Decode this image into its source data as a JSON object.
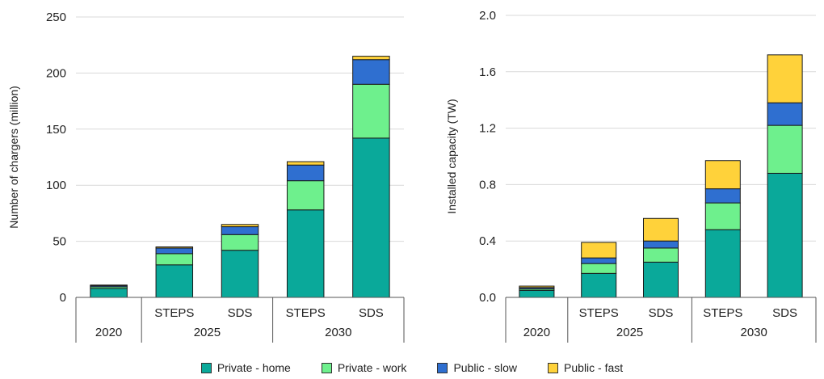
{
  "colors": {
    "Private - home": "#0aa99a",
    "Private - work": "#6ef08d",
    "Public - slow": "#2f6fd0",
    "Public - fast": "#ffd23a"
  },
  "chart_data": [
    {
      "type": "bar",
      "stacked": true,
      "ylabel": "Number of chargers  (million)",
      "ylim": [
        0,
        250
      ],
      "yticks": [
        "0",
        "50",
        "100",
        "150",
        "200",
        "250"
      ],
      "grid": true,
      "groups": [
        {
          "label": "2020",
          "categories": [
            ""
          ]
        },
        {
          "label": "2025",
          "categories": [
            "STEPS",
            "SDS"
          ]
        },
        {
          "label": "2030",
          "categories": [
            "STEPS",
            "SDS"
          ]
        }
      ],
      "series": [
        {
          "name": "Private - home",
          "values": [
            8,
            29,
            42,
            78,
            142
          ]
        },
        {
          "name": "Private - work",
          "values": [
            1.5,
            10,
            14,
            26,
            48
          ]
        },
        {
          "name": "Public - slow",
          "values": [
            1,
            5,
            7,
            14,
            22
          ]
        },
        {
          "name": "Public - fast",
          "values": [
            0.5,
            1,
            2,
            3,
            3
          ]
        }
      ]
    },
    {
      "type": "bar",
      "stacked": true,
      "ylabel": "Installed capacity (TW)",
      "ylim": [
        0,
        2.0
      ],
      "yticks": [
        "0.0",
        "0.4",
        "0.8",
        "1.2",
        "1.6",
        "2.0"
      ],
      "grid": true,
      "groups": [
        {
          "label": "2020",
          "categories": [
            ""
          ]
        },
        {
          "label": "2025",
          "categories": [
            "STEPS",
            "SDS"
          ]
        },
        {
          "label": "2030",
          "categories": [
            "STEPS",
            "SDS"
          ]
        }
      ],
      "series": [
        {
          "name": "Private - home",
          "values": [
            0.05,
            0.17,
            0.25,
            0.48,
            0.88
          ]
        },
        {
          "name": "Private - work",
          "values": [
            0.01,
            0.07,
            0.1,
            0.19,
            0.34
          ]
        },
        {
          "name": "Public - slow",
          "values": [
            0.01,
            0.04,
            0.05,
            0.1,
            0.16
          ]
        },
        {
          "name": "Public - fast",
          "values": [
            0.01,
            0.11,
            0.16,
            0.2,
            0.34
          ]
        }
      ]
    }
  ]
}
